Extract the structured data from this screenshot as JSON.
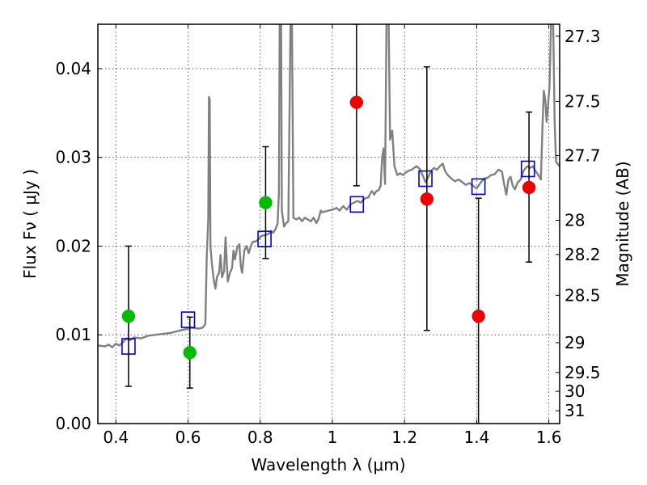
{
  "chart_data": {
    "type": "scatter",
    "xlabel": "Wavelength  λ (μm)",
    "ylabel": "Flux  Fν  ( μJy )",
    "ylabel_right": "Magnitude (AB)",
    "xlim": [
      0.35,
      1.63
    ],
    "ylim": [
      0.0,
      0.045
    ],
    "grid": true,
    "x_ticks": [
      {
        "value": 0.4,
        "label": "0.4"
      },
      {
        "value": 0.6,
        "label": "0.6"
      },
      {
        "value": 0.8,
        "label": "0.8"
      },
      {
        "value": 1.0,
        "label": "1"
      },
      {
        "value": 1.2,
        "label": "1.2"
      },
      {
        "value": 1.4,
        "label": "1.4"
      },
      {
        "value": 1.6,
        "label": "1.6"
      }
    ],
    "y_ticks": [
      {
        "value": 0.0,
        "label": "0.00"
      },
      {
        "value": 0.01,
        "label": "0.01"
      },
      {
        "value": 0.02,
        "label": "0.02"
      },
      {
        "value": 0.03,
        "label": "0.03"
      },
      {
        "value": 0.04,
        "label": "0.04"
      }
    ],
    "mag_ticks": [
      {
        "mag": 27.3,
        "label": "27.3"
      },
      {
        "mag": 27.5,
        "label": "27.5"
      },
      {
        "mag": 27.7,
        "label": "27.7"
      },
      {
        "mag": 28.0,
        "label": "28"
      },
      {
        "mag": 28.2,
        "label": "28.2"
      },
      {
        "mag": 28.5,
        "label": "28.5"
      },
      {
        "mag": 29.0,
        "label": "29"
      },
      {
        "mag": 29.5,
        "label": "29.5"
      },
      {
        "mag": 30.0,
        "label": "30"
      },
      {
        "mag": 31.0,
        "label": "31"
      }
    ],
    "mag_zero_point_ujy": 3631000000,
    "series": [
      {
        "kind": "line",
        "color": "#808080",
        "points": [
          [
            0.35,
            0.0088
          ],
          [
            0.37,
            0.0087
          ],
          [
            0.38,
            0.0089
          ],
          [
            0.39,
            0.0086
          ],
          [
            0.4,
            0.009
          ],
          [
            0.41,
            0.0088
          ],
          [
            0.42,
            0.0092
          ],
          [
            0.43,
            0.0096
          ],
          [
            0.44,
            0.0094
          ],
          [
            0.45,
            0.0097
          ],
          [
            0.47,
            0.0096
          ],
          [
            0.49,
            0.0099
          ],
          [
            0.51,
            0.01
          ],
          [
            0.53,
            0.0101
          ],
          [
            0.55,
            0.0102
          ],
          [
            0.57,
            0.0104
          ],
          [
            0.59,
            0.0106
          ],
          [
            0.61,
            0.0108
          ],
          [
            0.63,
            0.0107
          ],
          [
            0.64,
            0.0108
          ],
          [
            0.648,
            0.0112
          ],
          [
            0.652,
            0.019
          ],
          [
            0.656,
            0.023
          ],
          [
            0.658,
            0.0368
          ],
          [
            0.66,
            0.0365
          ],
          [
            0.662,
            0.02
          ],
          [
            0.666,
            0.018
          ],
          [
            0.672,
            0.016
          ],
          [
            0.676,
            0.0152
          ],
          [
            0.68,
            0.0165
          ],
          [
            0.686,
            0.017
          ],
          [
            0.69,
            0.019
          ],
          [
            0.694,
            0.0165
          ],
          [
            0.7,
            0.0172
          ],
          [
            0.704,
            0.021
          ],
          [
            0.71,
            0.016
          ],
          [
            0.716,
            0.017
          ],
          [
            0.722,
            0.0175
          ],
          [
            0.726,
            0.0195
          ],
          [
            0.73,
            0.0185
          ],
          [
            0.736,
            0.0198
          ],
          [
            0.742,
            0.0202
          ],
          [
            0.746,
            0.0178
          ],
          [
            0.75,
            0.017
          ],
          [
            0.756,
            0.0195
          ],
          [
            0.762,
            0.02
          ],
          [
            0.768,
            0.0192
          ],
          [
            0.774,
            0.02
          ],
          [
            0.78,
            0.0205
          ],
          [
            0.786,
            0.0205
          ],
          [
            0.79,
            0.0206
          ],
          [
            0.795,
            0.0208
          ],
          [
            0.8,
            0.021
          ],
          [
            0.806,
            0.0212
          ],
          [
            0.812,
            0.0212
          ],
          [
            0.818,
            0.0213
          ],
          [
            0.824,
            0.0214
          ],
          [
            0.83,
            0.0217
          ],
          [
            0.836,
            0.0215
          ],
          [
            0.842,
            0.0219
          ],
          [
            0.848,
            0.0225
          ],
          [
            0.852,
            0.026
          ],
          [
            0.854,
            0.045
          ],
          [
            0.858,
            0.045
          ],
          [
            0.86,
            0.024
          ],
          [
            0.866,
            0.0222
          ],
          [
            0.872,
            0.0226
          ],
          [
            0.878,
            0.0228
          ],
          [
            0.884,
            0.045
          ],
          [
            0.888,
            0.045
          ],
          [
            0.892,
            0.0232
          ],
          [
            0.9,
            0.023
          ],
          [
            0.908,
            0.0232
          ],
          [
            0.916,
            0.0228
          ],
          [
            0.924,
            0.0232
          ],
          [
            0.932,
            0.023
          ],
          [
            0.94,
            0.0228
          ],
          [
            0.948,
            0.0232
          ],
          [
            0.956,
            0.0226
          ],
          [
            0.962,
            0.0231
          ],
          [
            0.968,
            0.024
          ],
          [
            0.972,
            0.0238
          ],
          [
            0.98,
            0.0239
          ],
          [
            0.99,
            0.024
          ],
          [
            1.0,
            0.0241
          ],
          [
            1.012,
            0.0243
          ],
          [
            1.02,
            0.024
          ],
          [
            1.03,
            0.0245
          ],
          [
            1.04,
            0.0241
          ],
          [
            1.05,
            0.0247
          ],
          [
            1.06,
            0.0249
          ],
          [
            1.07,
            0.0251
          ],
          [
            1.078,
            0.0249
          ],
          [
            1.085,
            0.0252
          ],
          [
            1.092,
            0.0254
          ],
          [
            1.1,
            0.0255
          ],
          [
            1.106,
            0.026
          ],
          [
            1.11,
            0.0262
          ],
          [
            1.116,
            0.0258
          ],
          [
            1.122,
            0.0262
          ],
          [
            1.128,
            0.0263
          ],
          [
            1.134,
            0.0268
          ],
          [
            1.138,
            0.03
          ],
          [
            1.142,
            0.031
          ],
          [
            1.146,
            0.027
          ],
          [
            1.15,
            0.045
          ],
          [
            1.156,
            0.045
          ],
          [
            1.16,
            0.032
          ],
          [
            1.166,
            0.033
          ],
          [
            1.172,
            0.029
          ],
          [
            1.18,
            0.028
          ],
          [
            1.188,
            0.0282
          ],
          [
            1.196,
            0.028
          ],
          [
            1.204,
            0.0283
          ],
          [
            1.212,
            0.0285
          ],
          [
            1.22,
            0.0286
          ],
          [
            1.226,
            0.0288
          ],
          [
            1.234,
            0.029
          ],
          [
            1.242,
            0.0287
          ],
          [
            1.25,
            0.028
          ],
          [
            1.258,
            0.0272
          ],
          [
            1.266,
            0.0278
          ],
          [
            1.274,
            0.0285
          ],
          [
            1.282,
            0.0288
          ],
          [
            1.29,
            0.0286
          ],
          [
            1.298,
            0.029
          ],
          [
            1.306,
            0.0293
          ],
          [
            1.312,
            0.0285
          ],
          [
            1.32,
            0.028
          ],
          [
            1.33,
            0.0276
          ],
          [
            1.34,
            0.0273
          ],
          [
            1.35,
            0.0275
          ],
          [
            1.36,
            0.0272
          ],
          [
            1.37,
            0.0269
          ],
          [
            1.38,
            0.0271
          ],
          [
            1.39,
            0.0268
          ],
          [
            1.4,
            0.0265
          ],
          [
            1.41,
            0.0271
          ],
          [
            1.42,
            0.0276
          ],
          [
            1.43,
            0.0277
          ],
          [
            1.44,
            0.028
          ],
          [
            1.45,
            0.0281
          ],
          [
            1.46,
            0.0286
          ],
          [
            1.47,
            0.0284
          ],
          [
            1.476,
            0.027
          ],
          [
            1.482,
            0.0258
          ],
          [
            1.488,
            0.0275
          ],
          [
            1.494,
            0.0278
          ],
          [
            1.5,
            0.0268
          ],
          [
            1.506,
            0.0264
          ],
          [
            1.514,
            0.0272
          ],
          [
            1.522,
            0.0275
          ],
          [
            1.53,
            0.0285
          ],
          [
            1.54,
            0.029
          ],
          [
            1.548,
            0.0288
          ],
          [
            1.556,
            0.029
          ],
          [
            1.562,
            0.0285
          ],
          [
            1.568,
            0.0282
          ],
          [
            1.574,
            0.0278
          ],
          [
            1.578,
            0.0275
          ],
          [
            1.582,
            0.033
          ],
          [
            1.586,
            0.0375
          ],
          [
            1.59,
            0.0365
          ],
          [
            1.594,
            0.034
          ],
          [
            1.598,
            0.036
          ],
          [
            1.602,
            0.038
          ],
          [
            1.606,
            0.045
          ],
          [
            1.612,
            0.045
          ],
          [
            1.616,
            0.034
          ],
          [
            1.62,
            0.0295
          ],
          [
            1.63,
            0.029
          ]
        ]
      },
      {
        "kind": "squares",
        "color": "#0000cc",
        "points": [
          [
            0.435,
            0.0087
          ],
          [
            0.6,
            0.0117
          ],
          [
            0.812,
            0.0208
          ],
          [
            1.068,
            0.0247
          ],
          [
            1.258,
            0.0276
          ],
          [
            1.405,
            0.0267
          ],
          [
            1.542,
            0.0287
          ]
        ]
      },
      {
        "kind": "errorbars",
        "color": "#000000",
        "bars": [
          {
            "x": 0.435,
            "low": 0.0042,
            "high": 0.02
          },
          {
            "x": 0.605,
            "low": 0.004,
            "high": 0.012
          },
          {
            "x": 0.815,
            "low": 0.0186,
            "high": 0.0312
          },
          {
            "x": 1.067,
            "low": 0.0268,
            "high": 0.045
          },
          {
            "x": 1.262,
            "low": 0.0105,
            "high": 0.0402
          },
          {
            "x": 1.405,
            "low": 0.0,
            "high": 0.0254
          },
          {
            "x": 1.545,
            "low": 0.0182,
            "high": 0.0351
          }
        ]
      },
      {
        "kind": "dots",
        "color": "#00bb00",
        "points": [
          [
            0.435,
            0.0121
          ],
          [
            0.605,
            0.008
          ],
          [
            0.815,
            0.0249
          ]
        ]
      },
      {
        "kind": "dots",
        "color": "#ee0000",
        "points": [
          [
            1.067,
            0.0362
          ],
          [
            1.262,
            0.0253
          ],
          [
            1.405,
            0.0121
          ],
          [
            1.545,
            0.0266
          ]
        ]
      }
    ]
  }
}
